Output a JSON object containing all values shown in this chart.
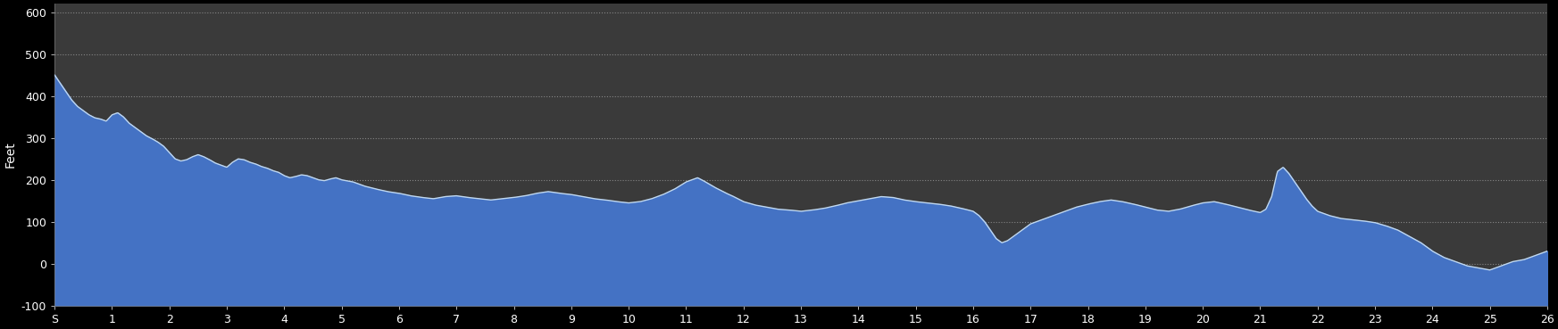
{
  "background_color": "#000000",
  "plot_bg_color": "#3a3a3a",
  "fill_color": "#4472c4",
  "line_color": "#c0d8f0",
  "grid_color": "#999999",
  "ylabel": "Feet",
  "ylim": [
    -100,
    620
  ],
  "yticks": [
    -100,
    0,
    100,
    200,
    300,
    400,
    500,
    600
  ],
  "xtick_labels": [
    "S",
    "1",
    "2",
    "3",
    "4",
    "5",
    "6",
    "7",
    "8",
    "9",
    "10",
    "11",
    "12",
    "13",
    "14",
    "15",
    "16",
    "17",
    "18",
    "19",
    "20",
    "21",
    "22",
    "23",
    "24",
    "25",
    "26"
  ],
  "elevation_x": [
    0,
    0.05,
    0.1,
    0.2,
    0.3,
    0.4,
    0.5,
    0.6,
    0.7,
    0.8,
    0.9,
    1.0,
    1.1,
    1.2,
    1.3,
    1.4,
    1.5,
    1.6,
    1.7,
    1.8,
    1.9,
    2.0,
    2.1,
    2.2,
    2.3,
    2.4,
    2.5,
    2.6,
    2.7,
    2.8,
    2.9,
    3.0,
    3.1,
    3.2,
    3.3,
    3.4,
    3.5,
    3.6,
    3.7,
    3.8,
    3.9,
    4.0,
    4.1,
    4.2,
    4.3,
    4.4,
    4.5,
    4.6,
    4.7,
    4.8,
    4.9,
    5.0,
    5.2,
    5.4,
    5.6,
    5.8,
    6.0,
    6.2,
    6.4,
    6.6,
    6.8,
    7.0,
    7.2,
    7.4,
    7.6,
    7.8,
    8.0,
    8.2,
    8.4,
    8.6,
    8.8,
    9.0,
    9.2,
    9.4,
    9.6,
    9.8,
    10.0,
    10.2,
    10.4,
    10.6,
    10.8,
    11.0,
    11.1,
    11.2,
    11.3,
    11.4,
    11.5,
    11.6,
    11.7,
    11.8,
    11.9,
    12.0,
    12.2,
    12.4,
    12.6,
    12.8,
    13.0,
    13.2,
    13.4,
    13.6,
    13.8,
    14.0,
    14.2,
    14.4,
    14.6,
    14.8,
    15.0,
    15.2,
    15.4,
    15.6,
    15.8,
    16.0,
    16.1,
    16.2,
    16.3,
    16.4,
    16.5,
    16.6,
    16.7,
    16.8,
    16.9,
    17.0,
    17.2,
    17.4,
    17.6,
    17.8,
    18.0,
    18.2,
    18.4,
    18.6,
    18.8,
    19.0,
    19.2,
    19.4,
    19.6,
    19.8,
    20.0,
    20.2,
    20.4,
    20.6,
    20.8,
    21.0,
    21.1,
    21.2,
    21.3,
    21.4,
    21.5,
    21.6,
    21.7,
    21.8,
    21.9,
    22.0,
    22.2,
    22.4,
    22.6,
    22.8,
    23.0,
    23.2,
    23.4,
    23.6,
    23.8,
    24.0,
    24.2,
    24.4,
    24.6,
    24.8,
    25.0,
    25.2,
    25.4,
    25.6,
    25.8,
    26.0
  ],
  "elevation_y": [
    450,
    440,
    430,
    410,
    390,
    375,
    365,
    355,
    348,
    345,
    340,
    355,
    360,
    350,
    335,
    325,
    315,
    305,
    298,
    290,
    280,
    265,
    250,
    245,
    248,
    255,
    260,
    255,
    248,
    240,
    235,
    230,
    242,
    250,
    248,
    242,
    238,
    232,
    228,
    222,
    218,
    210,
    205,
    208,
    212,
    210,
    205,
    200,
    198,
    202,
    205,
    200,
    195,
    185,
    178,
    172,
    168,
    162,
    158,
    155,
    160,
    162,
    158,
    155,
    152,
    155,
    158,
    162,
    168,
    172,
    168,
    165,
    160,
    155,
    152,
    148,
    145,
    148,
    155,
    165,
    178,
    195,
    200,
    205,
    198,
    190,
    182,
    175,
    168,
    162,
    155,
    148,
    140,
    135,
    130,
    128,
    125,
    128,
    132,
    138,
    145,
    150,
    155,
    160,
    158,
    152,
    148,
    145,
    142,
    138,
    132,
    125,
    115,
    100,
    80,
    60,
    50,
    55,
    65,
    75,
    85,
    95,
    105,
    115,
    125,
    135,
    142,
    148,
    152,
    148,
    142,
    135,
    128,
    125,
    130,
    138,
    145,
    148,
    142,
    135,
    128,
    122,
    130,
    160,
    220,
    230,
    215,
    195,
    175,
    155,
    138,
    125,
    115,
    108,
    105,
    102,
    98,
    90,
    80,
    65,
    50,
    30,
    15,
    5,
    -5,
    -10,
    -15,
    -5,
    5,
    10,
    20,
    30
  ]
}
